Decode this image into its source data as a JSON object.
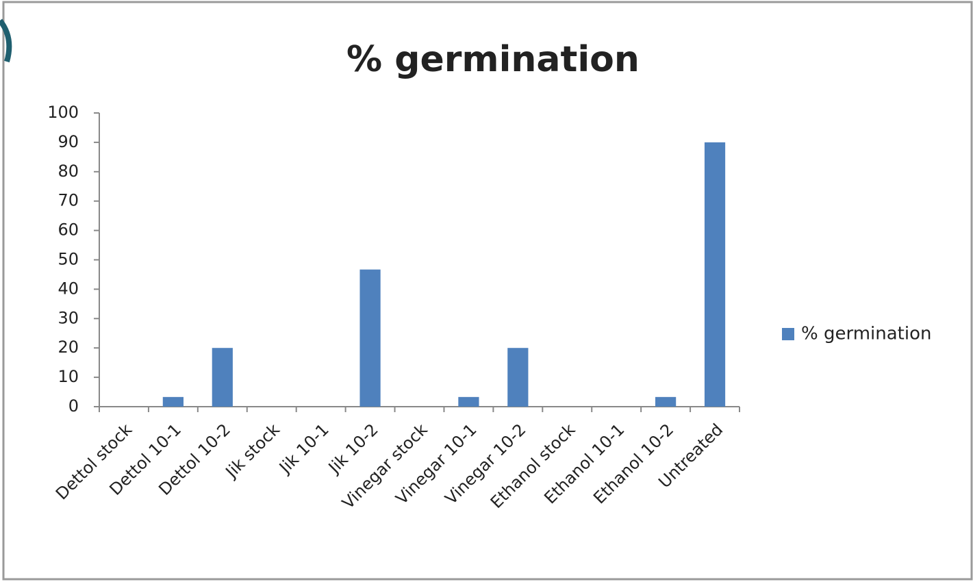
{
  "chart_data": {
    "type": "bar",
    "title": "% germination",
    "categories": [
      "Dettol stock",
      "Dettol 10-1",
      "Dettol 10-2",
      "Jik stock",
      "Jik 10-1",
      "Jik 10-2",
      "Vinegar stock",
      "Vinegar 10-1",
      "Vinegar 10-2",
      "Ethanol stock",
      "Ethanol 10-1",
      "Ethanol 10-2",
      "Untreated"
    ],
    "series": [
      {
        "name": "% germination",
        "color": "#4f81bd",
        "values": [
          0,
          3.3,
          20,
          0,
          0,
          46.7,
          0,
          3.3,
          20,
          0,
          0,
          3.3,
          90
        ]
      }
    ],
    "ylim": [
      0,
      100
    ],
    "yticks": [
      0,
      10,
      20,
      30,
      40,
      50,
      60,
      70,
      80,
      90,
      100
    ],
    "grid": false,
    "legend": "right"
  }
}
